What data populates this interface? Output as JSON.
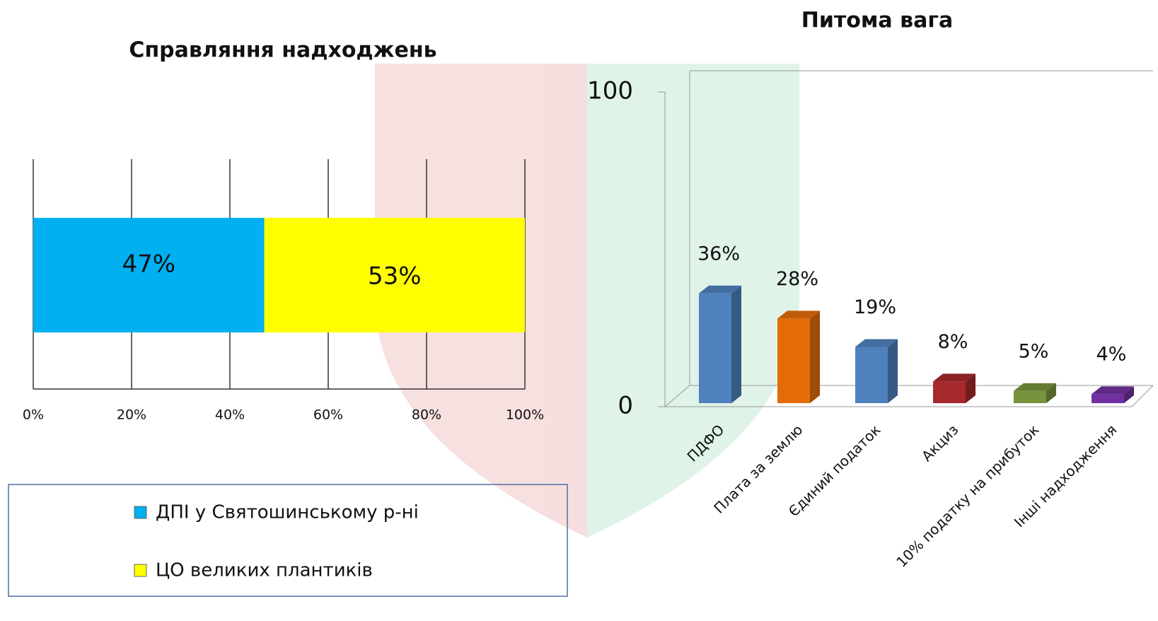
{
  "chart_data": [
    {
      "type": "hbar-stacked",
      "title": "Справляння надходжень",
      "categories": [
        null
      ],
      "series": [
        {
          "name": "ДПІ у Святошинському р-ні",
          "color": "#00b0f0",
          "values": [
            47
          ],
          "value_labels": [
            "47%"
          ]
        },
        {
          "name": "ЦО великих плантиків",
          "color": "#ffff00",
          "values": [
            53
          ],
          "value_labels": [
            "53%"
          ]
        }
      ],
      "xlim": [
        0,
        100
      ],
      "xticks": [
        {
          "value": 0,
          "label": "0%"
        },
        {
          "value": 20,
          "label": "20%"
        },
        {
          "value": 40,
          "label": "40%"
        },
        {
          "value": 60,
          "label": "60%"
        },
        {
          "value": 80,
          "label": "80%"
        },
        {
          "value": 100,
          "label": "100%"
        }
      ],
      "grid": true,
      "legend": "bottom"
    },
    {
      "type": "column3d",
      "title": "Питома вага",
      "categories": [
        "ПДФО",
        "Плата за землю",
        "Єдиний податок",
        "Акциз",
        "10% податку на прибуток",
        "Інші надходження"
      ],
      "values": [
        36,
        28,
        19,
        8,
        5,
        4
      ],
      "value_labels": [
        "36%",
        "28%",
        "19%",
        "8%",
        "5%",
        "4%"
      ],
      "colors": [
        "#4f81bd",
        "#e36c09",
        "#4f81bd",
        "#a5282a",
        "#77933c",
        "#7030a0"
      ],
      "ylim": [
        0,
        100
      ],
      "yticks": [
        0,
        100
      ]
    }
  ]
}
